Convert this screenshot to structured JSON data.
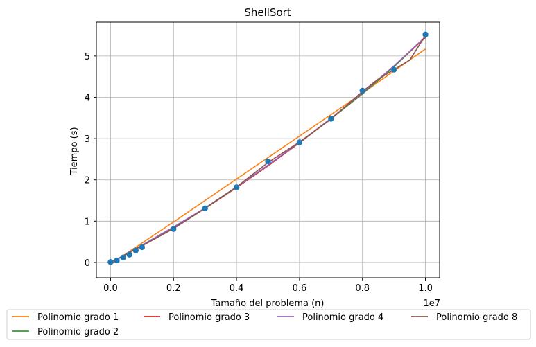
{
  "chart_data": {
    "type": "line",
    "title": "ShellSort",
    "xlabel": "Tamaño del problema (n)",
    "ylabel": "Tiempo (s)",
    "x_offset_label": "1e7",
    "xlim": [
      -0.045,
      1.045
    ],
    "ylim": [
      -0.37,
      5.82
    ],
    "x_ticks": [
      0.0,
      0.2,
      0.4,
      0.6,
      0.8,
      1.0
    ],
    "x_tick_labels": [
      "0.0",
      "0.2",
      "0.4",
      "0.6",
      "0.8",
      "1.0"
    ],
    "y_ticks": [
      0,
      1,
      2,
      3,
      4,
      5
    ],
    "y_tick_labels": [
      "0",
      "1",
      "2",
      "3",
      "4",
      "5"
    ],
    "grid": true,
    "legend_position": "below plot, 4 columns",
    "scatter": {
      "color": "#1f77b4",
      "x": [
        0.0,
        0.02,
        0.04,
        0.06,
        0.08,
        0.1,
        0.2,
        0.3,
        0.4,
        0.5,
        0.6,
        0.7,
        0.8,
        0.9,
        1.0
      ],
      "y": [
        0.01,
        0.05,
        0.12,
        0.19,
        0.29,
        0.37,
        0.81,
        1.31,
        1.82,
        2.45,
        2.91,
        3.48,
        4.16,
        4.67,
        5.52
      ]
    },
    "series": [
      {
        "name": "Polinomio grado 1",
        "color": "#ff7f0e",
        "x": [
          0.0,
          0.2,
          0.4,
          0.6,
          0.8,
          1.0
        ],
        "y": [
          -0.04,
          0.98,
          2.02,
          3.06,
          4.1,
          5.17
        ]
      },
      {
        "name": "Polinomio grado 2",
        "color": "#2ca02c",
        "x": [
          0.0,
          0.05,
          0.1,
          0.2,
          0.3,
          0.4,
          0.5,
          0.6,
          0.7,
          0.8,
          0.9,
          1.0
        ],
        "y": [
          -0.02,
          0.2,
          0.42,
          0.85,
          1.32,
          1.83,
          2.35,
          2.9,
          3.48,
          4.08,
          4.74,
          5.46
        ]
      },
      {
        "name": "Polinomio grado 3",
        "color": "#d62728",
        "x": [
          0.0,
          0.05,
          0.1,
          0.2,
          0.3,
          0.4,
          0.5,
          0.6,
          0.7,
          0.8,
          0.9,
          1.0
        ],
        "y": [
          -0.02,
          0.2,
          0.42,
          0.85,
          1.31,
          1.81,
          2.34,
          2.9,
          3.49,
          4.1,
          4.76,
          5.45
        ]
      },
      {
        "name": "Polinomio grado 4",
        "color": "#9467bd",
        "x": [
          0.0,
          0.05,
          0.1,
          0.2,
          0.3,
          0.4,
          0.5,
          0.6,
          0.7,
          0.8,
          0.9,
          1.0
        ],
        "y": [
          -0.02,
          0.2,
          0.42,
          0.86,
          1.32,
          1.82,
          2.36,
          2.91,
          3.49,
          4.11,
          4.76,
          5.47
        ]
      },
      {
        "name": "Polinomio grado 8",
        "color": "#8c564b",
        "x": [
          0.0,
          0.05,
          0.1,
          0.2,
          0.3,
          0.4,
          0.5,
          0.6,
          0.7,
          0.8,
          0.85,
          0.9,
          0.95,
          1.0
        ],
        "y": [
          0.0,
          0.2,
          0.4,
          0.82,
          1.31,
          1.83,
          2.42,
          2.92,
          3.47,
          4.14,
          4.44,
          4.67,
          4.9,
          5.5
        ]
      }
    ]
  }
}
